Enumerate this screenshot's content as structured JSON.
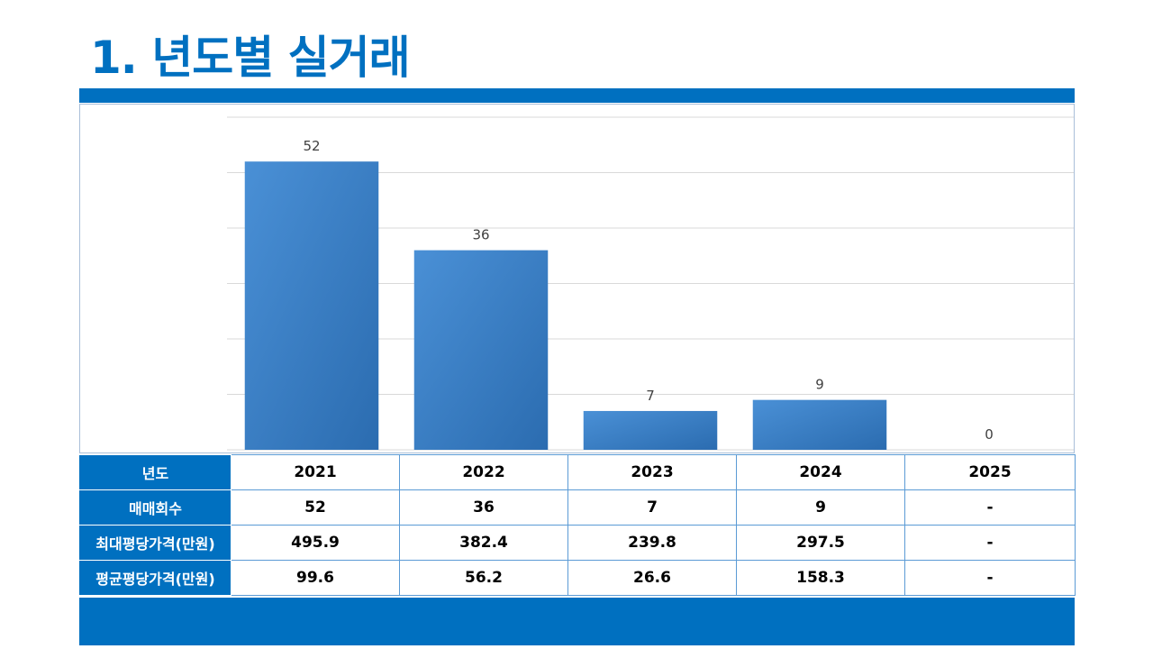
{
  "page": {
    "title": "1. 년도별 실거래"
  },
  "colors": {
    "accent": "#0070c0",
    "bar_light": "#4a90d6",
    "bar_dark": "#2b6cb0",
    "gridline": "#d9d9d9"
  },
  "chart_data": {
    "type": "bar",
    "categories": [
      "2021",
      "2022",
      "2023",
      "2024",
      "2025"
    ],
    "values": [
      52,
      36,
      7,
      9,
      0
    ],
    "title": "",
    "xlabel": "",
    "ylabel": "",
    "ylim": [
      0,
      60
    ],
    "grid": true,
    "data_labels": true
  },
  "table": {
    "header_label": "년도",
    "years": [
      "2021",
      "2022",
      "2023",
      "2024",
      "2025"
    ],
    "rows": [
      {
        "label": "매매회수",
        "values": [
          "52",
          "36",
          "7",
          "9",
          "-"
        ]
      },
      {
        "label": "최대평당가격(만원)",
        "values": [
          "495.9",
          "382.4",
          "239.8",
          "297.5",
          "-"
        ]
      },
      {
        "label": "평균평당가격(만원)",
        "values": [
          "99.6",
          "56.2",
          "26.6",
          "158.3",
          "-"
        ]
      }
    ]
  }
}
